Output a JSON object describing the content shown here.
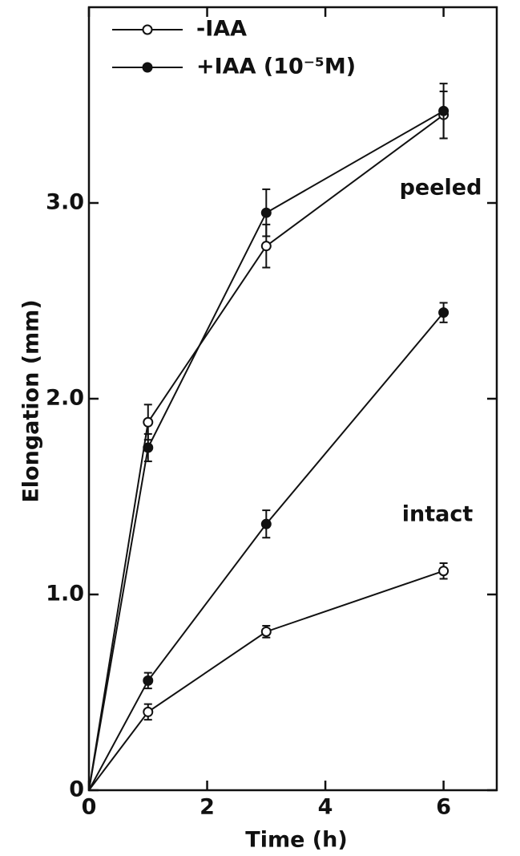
{
  "chart_data": {
    "type": "line",
    "xlabel": "Time (h)",
    "ylabel": "Elongation (mm)",
    "annotations": [
      "peeled",
      "intact"
    ],
    "legend": [
      {
        "label": "-IAA",
        "marker": "open"
      },
      {
        "label": "+IAA (10⁻⁵M)",
        "marker": "filled"
      }
    ],
    "x": [
      0,
      1,
      3,
      6
    ],
    "series": [
      {
        "marker": "open",
        "color": "#111111",
        "values": [
          0,
          1.88,
          2.78,
          3.45
        ],
        "errors": [
          null,
          0.09,
          0.11,
          0.12
        ]
      },
      {
        "marker": "filled",
        "color": "#111111",
        "values": [
          0,
          1.75,
          2.95,
          3.47
        ],
        "errors": [
          null,
          0.07,
          0.12,
          0.14
        ]
      },
      {
        "marker": "filled",
        "color": "#111111",
        "values": [
          0,
          0.56,
          1.36,
          2.44
        ],
        "errors": [
          null,
          0.04,
          0.07,
          0.05
        ]
      },
      {
        "marker": "open",
        "color": "#111111",
        "values": [
          0,
          0.4,
          0.81,
          1.12
        ],
        "errors": [
          null,
          0.04,
          0.03,
          0.04
        ]
      }
    ],
    "xlim": [
      0,
      6.9
    ],
    "xticks": [
      0,
      2,
      4,
      6
    ],
    "ylim": [
      0,
      4
    ],
    "yticks": [
      0,
      {
        "value": 1,
        "label": "1.0"
      },
      {
        "value": 2,
        "label": "2.0"
      },
      {
        "value": 3,
        "label": "3.0"
      }
    ]
  }
}
